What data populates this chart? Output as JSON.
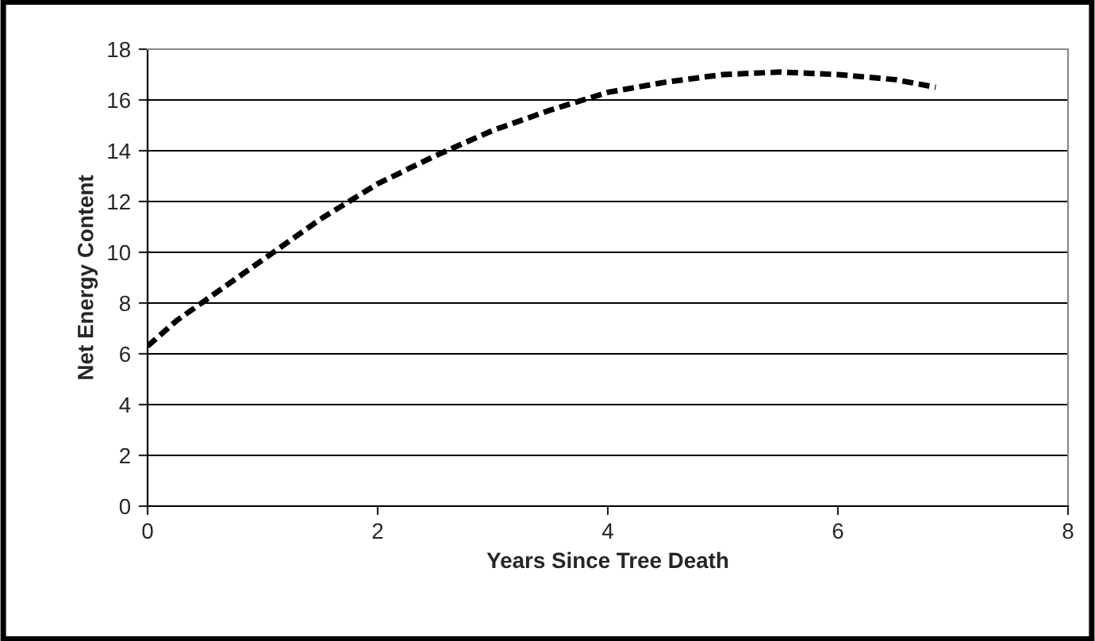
{
  "chart_data": {
    "type": "line",
    "xlabel": "Years Since Tree Death",
    "ylabel": "Net Energy Content",
    "series": [
      {
        "color": "#000000",
        "line_style": "dashed",
        "x": [
          0,
          0.25,
          0.5,
          0.75,
          1,
          1.25,
          1.5,
          1.75,
          2,
          2.5,
          3,
          3.5,
          4,
          4.5,
          5,
          5.5,
          6,
          6.5,
          6.85
        ],
        "values": [
          6.3,
          7.3,
          8.1,
          8.9,
          9.7,
          10.5,
          11.3,
          12.0,
          12.7,
          13.8,
          14.8,
          15.6,
          16.3,
          16.7,
          17.0,
          17.1,
          17.0,
          16.8,
          16.5
        ]
      }
    ],
    "xlim": [
      0,
      8
    ],
    "xticks": [
      0,
      2,
      4,
      6,
      8
    ],
    "ylim": [
      0,
      18
    ],
    "yticks": [
      0,
      2,
      4,
      6,
      8,
      10,
      12,
      14,
      16,
      18
    ],
    "grid": "y",
    "marker": "none"
  }
}
